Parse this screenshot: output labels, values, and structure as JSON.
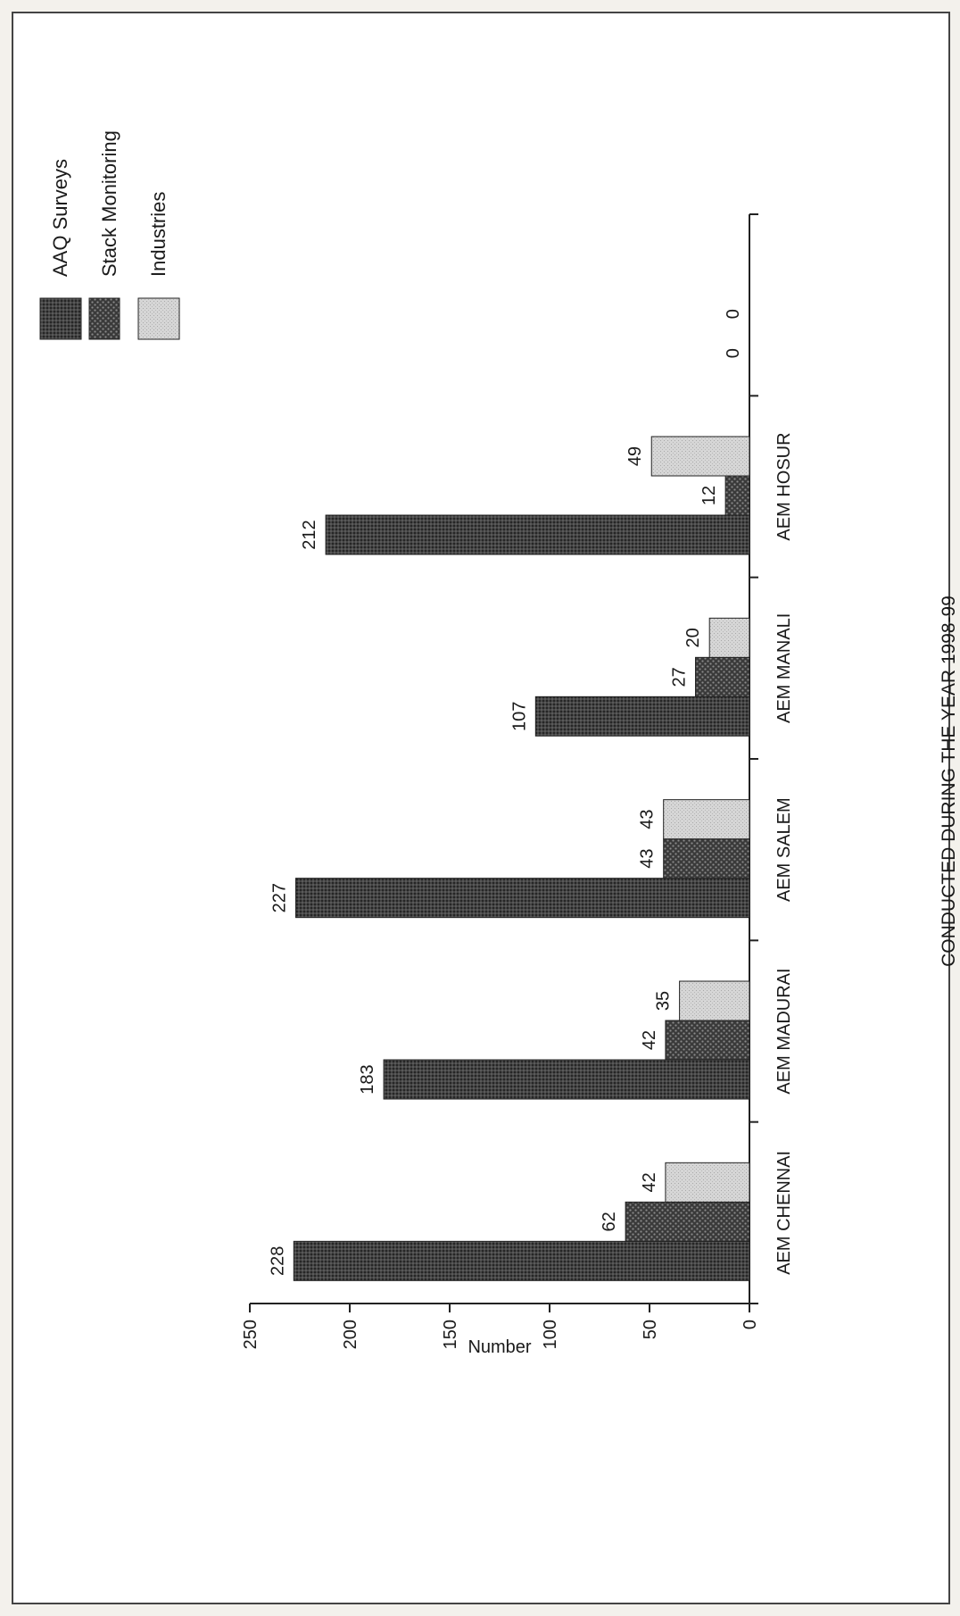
{
  "chart_data": {
    "type": "bar",
    "title": "CONDUCTED DURING THE YEAR 1998-99",
    "ylabel": "Number",
    "xlabel": "",
    "ylim": [
      0,
      250
    ],
    "yticks": [
      0,
      50,
      100,
      150,
      200,
      250
    ],
    "categories": [
      "AEM CHENNAI",
      "AEM MADURAI",
      "AEM SALEM",
      "AEM MANALI",
      "AEM HOSUR",
      ""
    ],
    "series": [
      {
        "name": "AAQ Surveys",
        "values": [
          228,
          183,
          227,
          107,
          212,
          0
        ]
      },
      {
        "name": "Stack Monitoring",
        "values": [
          62,
          42,
          43,
          27,
          12,
          0
        ]
      },
      {
        "name": "Industries",
        "values": [
          42,
          35,
          43,
          20,
          49,
          null
        ]
      }
    ],
    "legend_position": "top-right",
    "grid": false,
    "orientation": "rotated-90-ccw",
    "colors": {
      "AAQ Surveys": "#3e3e3e",
      "Stack Monitoring": "#2f2f2f",
      "Industries": "#cfcfcf"
    }
  }
}
